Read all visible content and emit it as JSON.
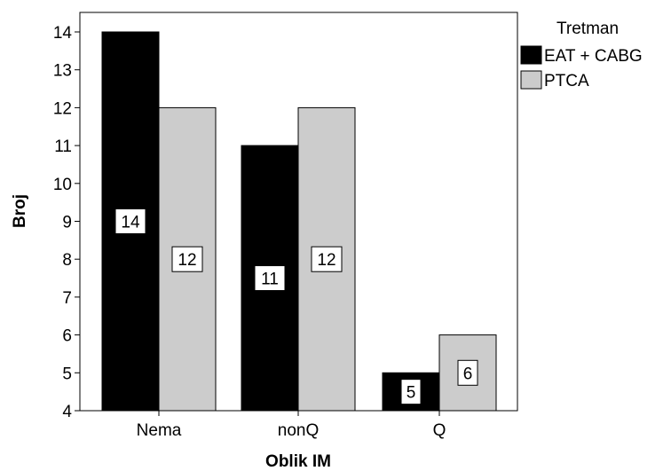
{
  "chart_data": {
    "type": "bar",
    "categories": [
      "Nema",
      "nonQ",
      "Q"
    ],
    "series": [
      {
        "name": "EAT + CABG",
        "values": [
          14,
          11,
          5
        ],
        "color": "#000000"
      },
      {
        "name": "PTCA",
        "values": [
          12,
          12,
          6
        ],
        "color": "#cccccc"
      }
    ],
    "xlabel": "Oblik IM",
    "ylabel": "Broj",
    "ylim": [
      4,
      14
    ],
    "yticks": [
      4,
      5,
      6,
      7,
      8,
      9,
      10,
      11,
      12,
      13,
      14
    ],
    "legend": {
      "title": "Tretman",
      "position": "right-top"
    },
    "data_labels": true,
    "grid": false
  }
}
